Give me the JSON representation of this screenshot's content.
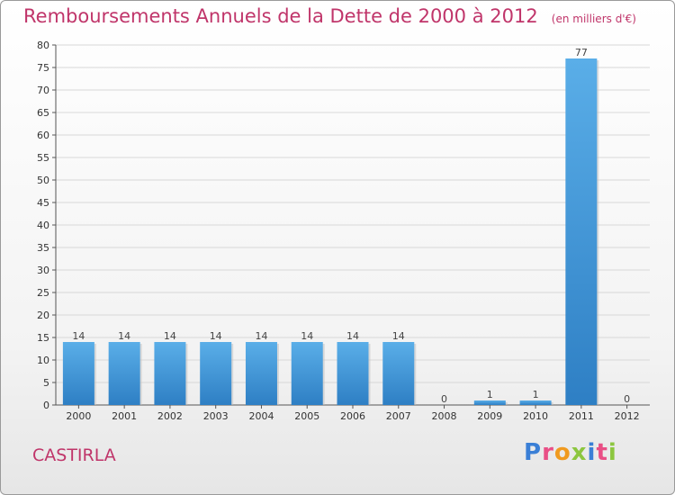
{
  "header": {
    "title": "Remboursements Annuels de la Dette de 2000 à 2012",
    "unit": "(en milliers d'€)"
  },
  "footer": {
    "commune": "CASTIRLA",
    "logo_text": "Proxiti"
  },
  "colors": {
    "title": "#c0356a",
    "bar_top": "#5aaee8",
    "bar_bottom": "#2e7fc4",
    "grid": "#d8d8d8"
  },
  "chart_data": {
    "type": "bar",
    "categories": [
      "2000",
      "2001",
      "2002",
      "2003",
      "2004",
      "2005",
      "2006",
      "2007",
      "2008",
      "2009",
      "2010",
      "2011",
      "2012"
    ],
    "values": [
      14,
      14,
      14,
      14,
      14,
      14,
      14,
      14,
      0,
      1,
      1,
      77,
      0
    ],
    "title": "Remboursements Annuels de la Dette de 2000 à 2012",
    "xlabel": "",
    "ylabel": "",
    "ylim": [
      0,
      80
    ],
    "yticks": [
      0,
      5,
      10,
      15,
      20,
      25,
      30,
      35,
      40,
      45,
      50,
      55,
      60,
      65,
      70,
      75,
      80
    ],
    "grid": true,
    "legend": "none"
  }
}
